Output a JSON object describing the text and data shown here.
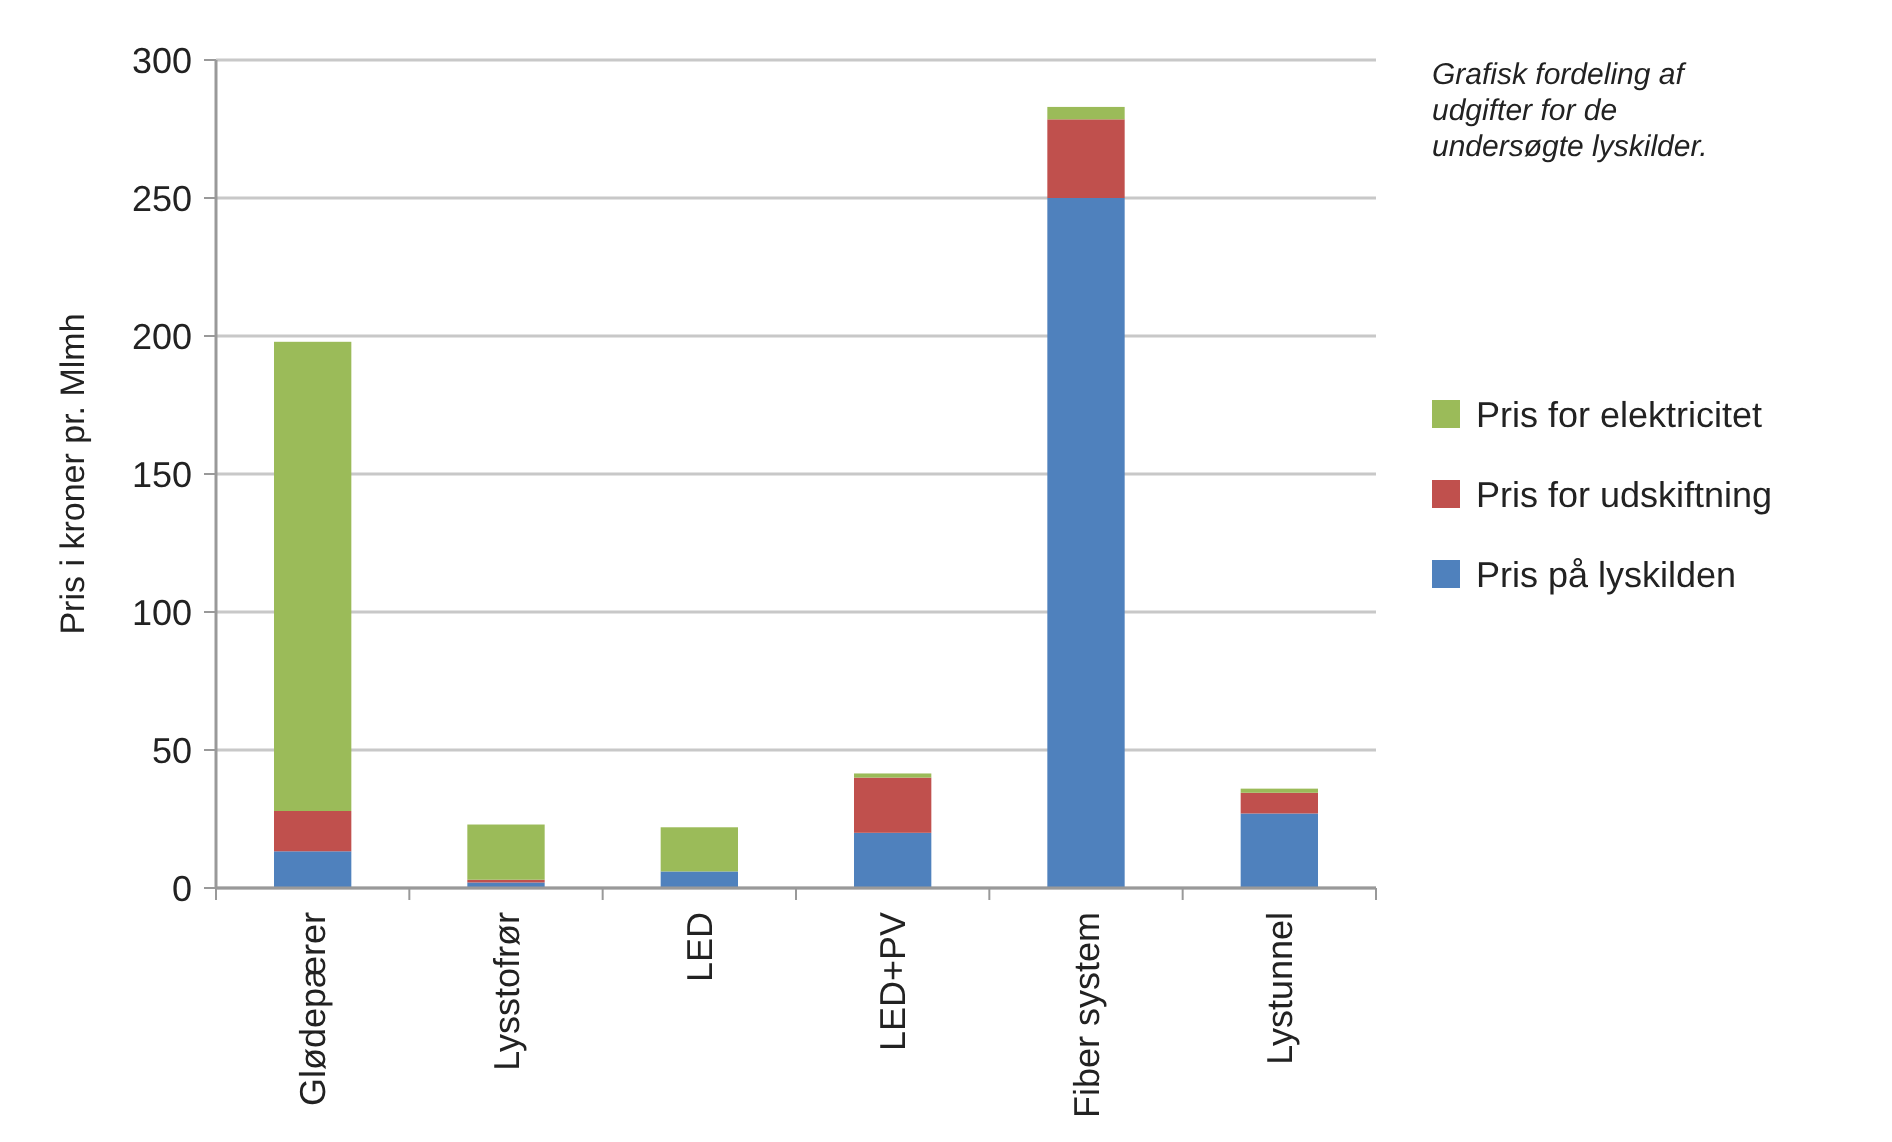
{
  "chart_data": {
    "type": "bar",
    "stacked": true,
    "ylabel": "Pris i kroner pr. Mlmh",
    "categories": [
      "Glødepærer",
      "Lysstofrør",
      "LED",
      "LED+PV",
      "Fiber system",
      "Lystunnel"
    ],
    "series": [
      {
        "name": "Pris på lyskilden",
        "color": "#4f81bd",
        "values": [
          13.3,
          2,
          6,
          20,
          250,
          27
        ]
      },
      {
        "name": "Pris for udskiftning",
        "color": "#c0504d",
        "values": [
          14.6,
          1,
          0,
          20,
          28.5,
          7.5
        ]
      },
      {
        "name": "Pris for elektricitet",
        "color": "#9bbb59",
        "values": [
          170,
          20,
          16,
          1.5,
          4.5,
          1.5
        ]
      }
    ],
    "ylim": [
      0,
      300
    ],
    "yticks": [
      0,
      50,
      100,
      150,
      200,
      250,
      300
    ],
    "grid": "y",
    "legend": "right",
    "annotations": [
      "Grafisk fordeling af udgifter for de undersøgte lyskilder."
    ]
  }
}
